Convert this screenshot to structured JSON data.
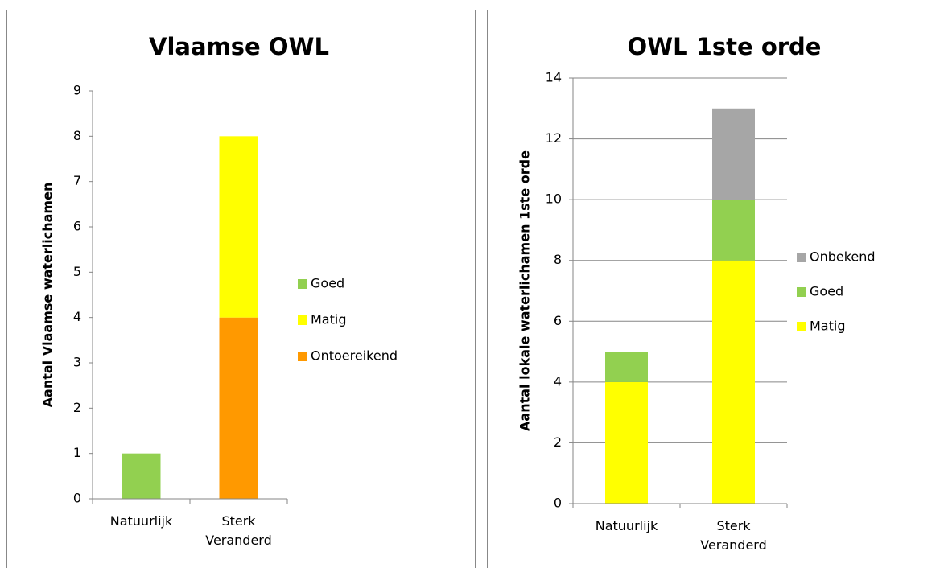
{
  "chart_data": [
    {
      "type": "bar",
      "stacked": true,
      "title": "Vlaamse OWL",
      "y_label": "Aantal Vlaamse waterlichamen",
      "categories": [
        "Natuurlijk",
        "Sterk Veranderd"
      ],
      "series": [
        {
          "name": "Ontoereikend",
          "color": "#ff9900",
          "values": [
            0,
            4
          ]
        },
        {
          "name": "Matig",
          "color": "#ffff00",
          "values": [
            0,
            4
          ]
        },
        {
          "name": "Goed",
          "color": "#92d050",
          "values": [
            1,
            0
          ]
        }
      ],
      "ylim": [
        0,
        9
      ],
      "yticks": [
        0,
        1,
        2,
        3,
        4,
        5,
        6,
        7,
        8,
        9
      ],
      "grid": false,
      "legend": "right"
    },
    {
      "type": "bar",
      "stacked": true,
      "title": "OWL 1ste orde",
      "y_label": "Aantal lokale waterlichamen 1ste orde",
      "categories": [
        "Natuurlijk",
        "Sterk Veranderd"
      ],
      "series": [
        {
          "name": "Matig",
          "color": "#ffff00",
          "values": [
            4,
            8
          ]
        },
        {
          "name": "Goed",
          "color": "#92d050",
          "values": [
            1,
            2
          ]
        },
        {
          "name": "Onbekend",
          "color": "#a6a6a6",
          "values": [
            0,
            3
          ]
        }
      ],
      "ylim": [
        0,
        14
      ],
      "yticks": [
        0,
        2,
        4,
        6,
        8,
        10,
        12,
        14
      ],
      "grid": true,
      "legend": "right"
    }
  ]
}
